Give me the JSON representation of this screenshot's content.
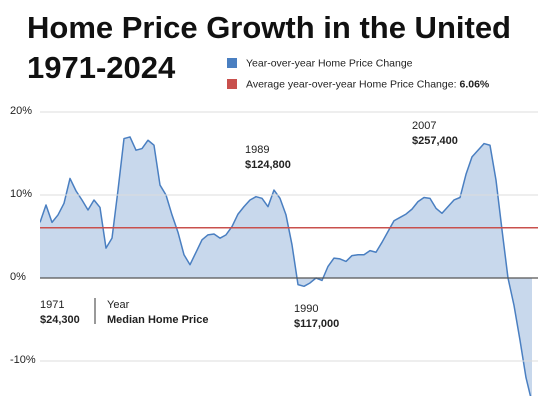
{
  "chart_data": {
    "type": "area",
    "title": "Home Price Growth in the United",
    "subtitle": "1971-2024",
    "x": [
      1971,
      1971.5,
      1972,
      1972.5,
      1973,
      1973.5,
      1974,
      1974.5,
      1975,
      1975.5,
      1976,
      1976.5,
      1977,
      1977.5,
      1978,
      1978.5,
      1979,
      1979.5,
      1980,
      1980.5,
      1981,
      1981.5,
      1982,
      1982.5,
      1983,
      1983.5,
      1984,
      1984.5,
      1985,
      1985.5,
      1986,
      1986.5,
      1987,
      1987.5,
      1988,
      1988.5,
      1989,
      1989.5,
      1990,
      1990.5,
      1991,
      1991.5,
      1992,
      1992.5,
      1993,
      1993.5,
      1994,
      1994.5,
      1995,
      1995.5,
      1996,
      1996.5,
      1997,
      1997.5,
      1998,
      1998.5,
      1999,
      1999.5,
      2000,
      2000.5,
      2001,
      2001.5,
      2002,
      2002.5,
      2003,
      2003.5,
      2004,
      2004.5,
      2005,
      2005.5,
      2006,
      2006.5,
      2007,
      2007.5,
      2008,
      2008.5,
      2009,
      2009.5,
      2010,
      2010.5,
      2011,
      2011.5,
      2012
    ],
    "series": [
      {
        "name": "Year-over-year Home Price Change",
        "color": "#4a7fc1",
        "values": [
          6.7,
          8.8,
          6.7,
          7.6,
          9,
          12,
          10.5,
          9.4,
          8.2,
          9.4,
          8.5,
          3.6,
          4.8,
          10.6,
          16.8,
          17,
          15.4,
          15.6,
          16.6,
          16,
          11.2,
          10,
          7.6,
          5.5,
          2.8,
          1.6,
          3.1,
          4.6,
          5.2,
          5.3,
          4.8,
          5.2,
          6.2,
          7.7,
          8.6,
          9.4,
          9.8,
          9.6,
          8.6,
          10.6,
          9.6,
          7.6,
          4,
          -0.8,
          -1,
          -0.6,
          0,
          -0.3,
          1.4,
          2.4,
          2.3,
          2,
          2.7,
          2.8,
          2.8,
          3.3,
          3.1,
          4.3,
          5.6,
          6.9,
          7.3,
          7.7,
          8.3,
          9.2,
          9.7,
          9.6,
          8.4,
          7.8,
          8.6,
          9.4,
          9.7,
          12.5,
          14.6,
          15.4,
          16.2,
          16,
          11.8,
          5.8,
          0,
          -3.3,
          -7.5,
          -12,
          -15
        ]
      }
    ],
    "reference_line": {
      "name": "Average year-over-year Home Price Change:",
      "value": 6.06,
      "value_label": "6.06%",
      "color": "#c9504d"
    },
    "xlim": [
      1971,
      2012.5
    ],
    "ylim": [
      -14.22,
      21.45
    ],
    "yticks": [
      {
        "value": 20,
        "label": "20%"
      },
      {
        "value": 10,
        "label": "10%"
      },
      {
        "value": 0,
        "label": "0%"
      },
      {
        "value": -10,
        "label": "-10%"
      }
    ],
    "grid": true,
    "annotations": [
      {
        "year": "1971",
        "price": "$24,300"
      },
      {
        "year": "1989",
        "price": "$124,800"
      },
      {
        "year": "1990",
        "price": "$117,000"
      },
      {
        "year": "2007",
        "price": "$257,400"
      }
    ],
    "key": {
      "year": "Year",
      "price": "Median Home Price"
    }
  }
}
